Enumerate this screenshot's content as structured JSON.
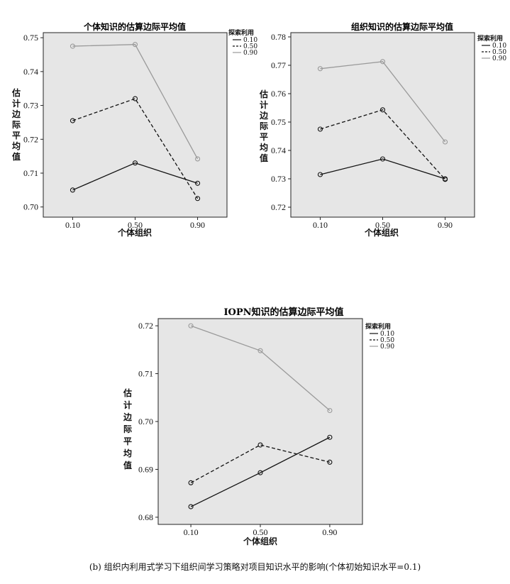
{
  "caption": "(b) 组织内利用式学习下组织间学习策略对项目知识水平的影响(个体初始知识水平=0.1)",
  "colors": {
    "s010": "#111111",
    "s050": "#111111",
    "s090": "#9a9a9a",
    "plot_bg": "#e6e6e6"
  },
  "chart_data": [
    {
      "type": "line",
      "title": "个体知识的估算边际平均值",
      "xlabel": "个体组织",
      "ylabel": "估计边际平均值",
      "categories": [
        "0.10",
        "0.50",
        "0.90"
      ],
      "yticks": [
        "0.70",
        "0.71",
        "0.72",
        "0.73",
        "0.74",
        "0.75"
      ],
      "ylim": [
        0.697,
        0.7515
      ],
      "legend_title": "探索利用",
      "series": [
        {
          "name": "0.10",
          "style": "solid",
          "values": [
            0.705,
            0.713,
            0.707
          ]
        },
        {
          "name": "0.50",
          "style": "dashed",
          "values": [
            0.7255,
            0.732,
            0.7025
          ]
        },
        {
          "name": "0.90",
          "style": "gray",
          "values": [
            0.7475,
            0.748,
            0.7142
          ]
        }
      ]
    },
    {
      "type": "line",
      "title": "组织知识的估算边际平均值",
      "xlabel": "个体组织",
      "ylabel": "估计边际平均值",
      "categories": [
        "0.10",
        "0.50",
        "0.90"
      ],
      "yticks": [
        "0.72",
        "0.73",
        "0.74",
        "0.75",
        "0.76",
        "0.77",
        "0.78"
      ],
      "ylim": [
        0.7165,
        0.7815
      ],
      "legend_title": "探索利用",
      "series": [
        {
          "name": "0.10",
          "style": "solid",
          "values": [
            0.7315,
            0.737,
            0.73
          ]
        },
        {
          "name": "0.50",
          "style": "dashed",
          "values": [
            0.7475,
            0.7543,
            0.7298
          ]
        },
        {
          "name": "0.90",
          "style": "gray",
          "values": [
            0.7688,
            0.7713,
            0.743
          ]
        }
      ]
    },
    {
      "type": "line",
      "title": "IOPN知识的估算边际平均值",
      "xlabel": "个体组织",
      "ylabel": "估计边际平均值",
      "categories": [
        "0.10",
        "0.50",
        "0.90"
      ],
      "yticks": [
        "0.68",
        "0.69",
        "0.70",
        "0.71",
        "0.72"
      ],
      "ylim": [
        0.6785,
        0.7215
      ],
      "legend_title": "探索利用",
      "series": [
        {
          "name": "0.10",
          "style": "solid",
          "values": [
            0.6822,
            0.6893,
            0.6967
          ]
        },
        {
          "name": "0.50",
          "style": "dashed",
          "values": [
            0.6872,
            0.6951,
            0.6915
          ]
        },
        {
          "name": "0.90",
          "style": "gray",
          "values": [
            0.72,
            0.7148,
            0.7023
          ]
        }
      ]
    }
  ]
}
